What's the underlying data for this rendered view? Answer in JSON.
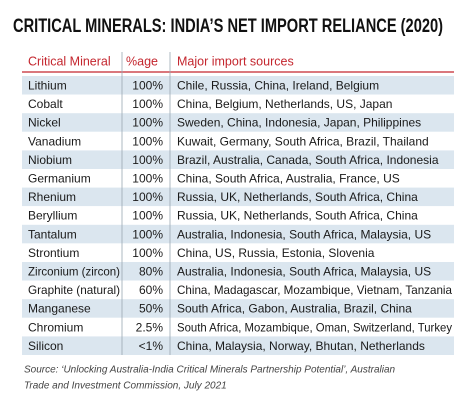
{
  "header": {
    "title": "CRITICAL MINERALS: INDIA’S NET IMPORT RELIANCE (2020)"
  },
  "table": {
    "columns": [
      "Critical Mineral",
      "%age",
      "Major import sources"
    ],
    "rows": [
      [
        "Lithium",
        "100%",
        "Chile, Russia, China, Ireland, Belgium"
      ],
      [
        "Cobalt",
        "100%",
        "China, Belgium, Netherlands, US, Japan"
      ],
      [
        "Nickel",
        "100%",
        "Sweden, China, Indonesia, Japan, Philippines"
      ],
      [
        "Vanadium",
        "100%",
        "Kuwait, Germany, South Africa, Brazil, Thailand"
      ],
      [
        "Niobium",
        "100%",
        "Brazil, Australia, Canada, South Africa, Indonesia"
      ],
      [
        "Germanium",
        "100%",
        "China, South Africa, Australia, France, US"
      ],
      [
        "Rhenium",
        "100%",
        "Russia, UK, Netherlands, South Africa, China"
      ],
      [
        "Beryllium",
        "100%",
        "Russia, UK, Netherlands, South Africa, China"
      ],
      [
        "Tantalum",
        "100%",
        "Australia, Indonesia, South Africa, Malaysia, US"
      ],
      [
        "Strontium",
        "100%",
        "China, US, Russia, Estonia, Slovenia"
      ],
      [
        "Zirconium (zircon)",
        "80%",
        "Australia, Indonesia, South Africa, Malaysia, US"
      ],
      [
        "Graphite (natural)",
        "60%",
        "China, Madagascar, Mozambique, Vietnam, Tanzania"
      ],
      [
        "Manganese",
        "50%",
        "South Africa, Gabon, Australia, Brazil, China"
      ],
      [
        "Chromium",
        "2.5%",
        "South Africa, Mozambique, Oman, Switzerland, Turkey"
      ],
      [
        "Silicon",
        "<1%",
        "China, Malaysia, Norway, Bhutan, Netherlands"
      ]
    ]
  },
  "source": {
    "lines": [
      "Source: ‘Unlocking Australia-India Critical Minerals Partnership Potential’, Australian",
      "Trade and Investment Commission, July 2021"
    ]
  }
}
